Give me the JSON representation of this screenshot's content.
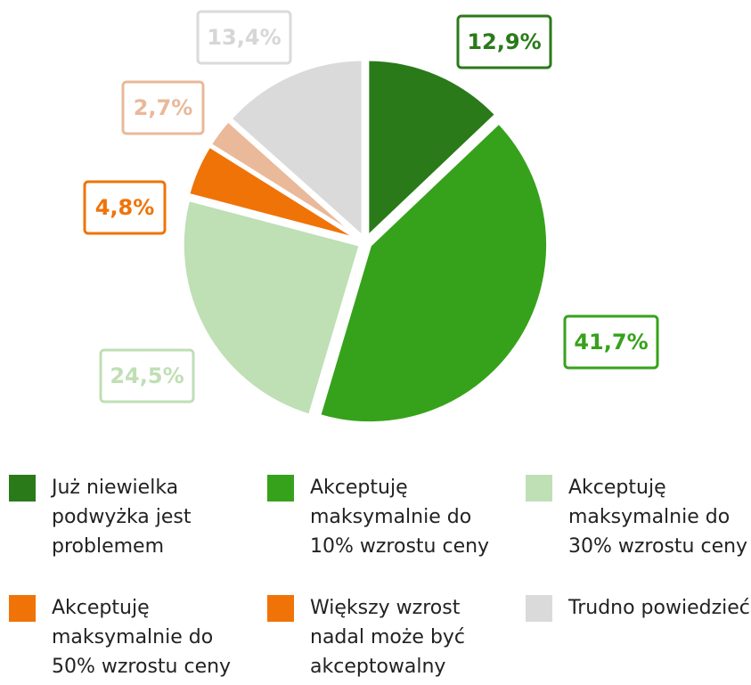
{
  "chart_data": {
    "type": "pie",
    "categories": [
      "Już niewielka podwyżka jest problemem",
      "Akceptuję maksymalnie do 10% wzrostu ceny",
      "Akceptuję maksymalnie do 30% wzrostu ceny",
      "Akceptuję maksymalnie do 50% wzrostu ceny",
      "Większy wzrost nadal może być akceptowalny",
      "Trudno powiedzieć"
    ],
    "values": [
      12.9,
      41.7,
      24.5,
      4.8,
      2.7,
      13.4
    ],
    "value_labels": [
      "12,9%",
      "41,7%",
      "24,5%",
      "4,8%",
      "2,7%",
      "13,4%"
    ],
    "colors": [
      "#2a7a1a",
      "#36a21b",
      "#bfdfb5",
      "#f07308",
      "#e9b999",
      "#dadada"
    ],
    "legend_colors": [
      "#2a7a1a",
      "#36a21b",
      "#bfdfb5",
      "#f07308",
      "#f07308",
      "#dadada"
    ]
  }
}
